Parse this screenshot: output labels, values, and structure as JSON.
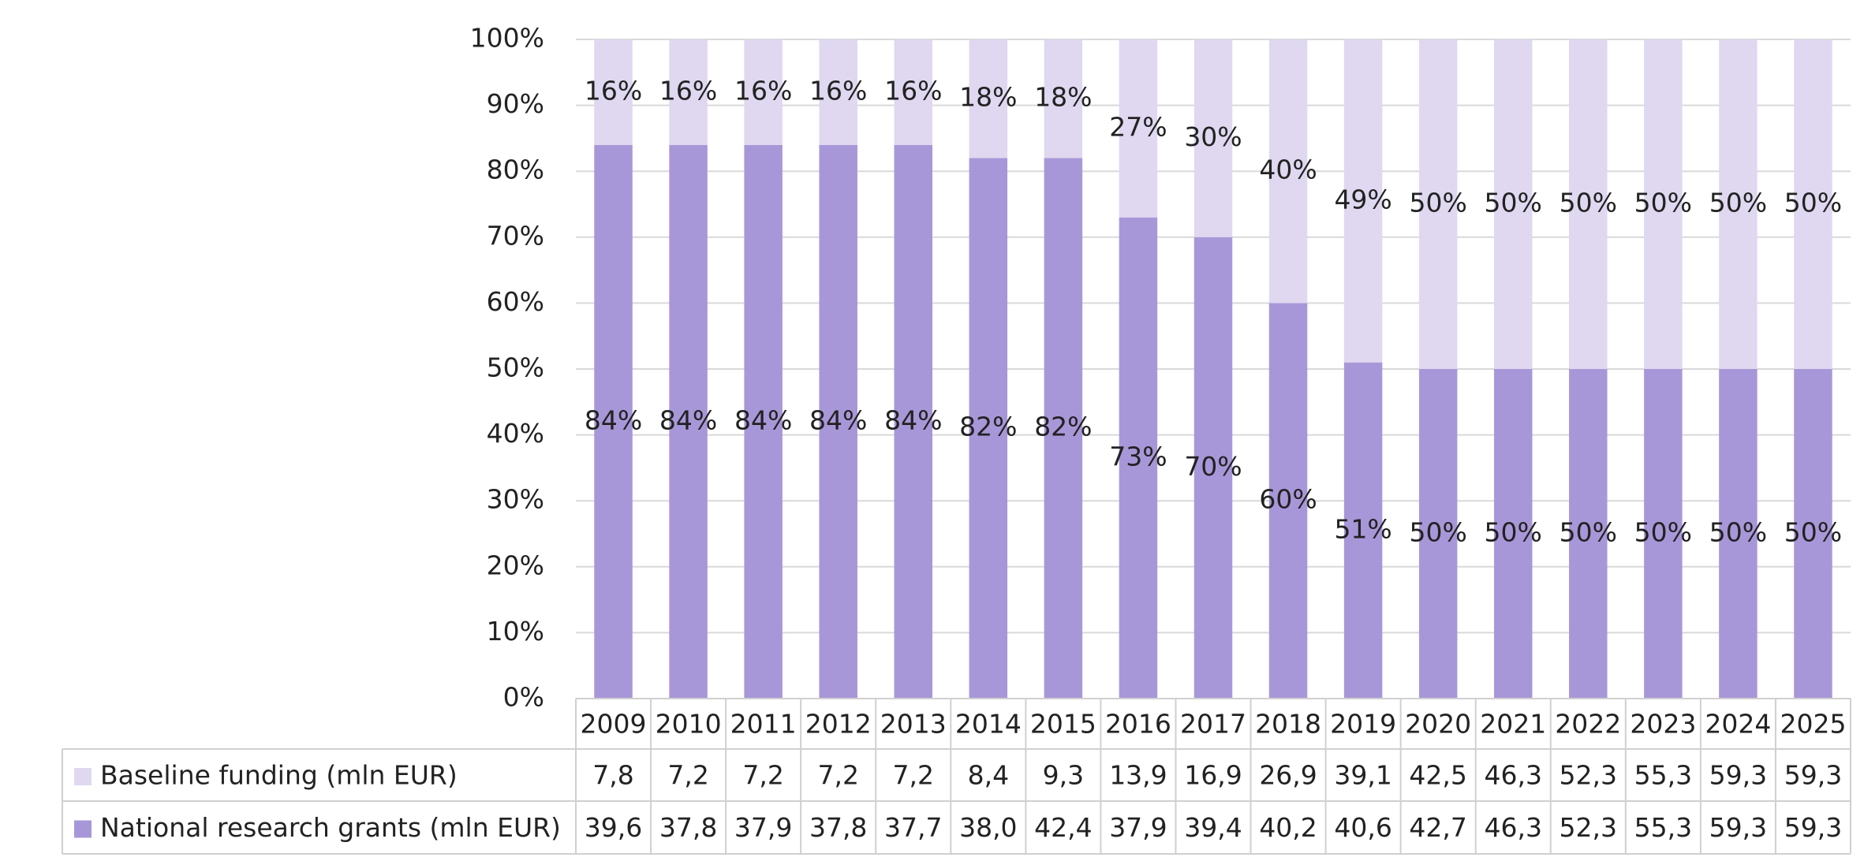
{
  "chart_data": {
    "type": "stacked_bar_100",
    "categories": [
      "2009",
      "2010",
      "2011",
      "2012",
      "2013",
      "2014",
      "2015",
      "2016",
      "2017",
      "2018",
      "2019",
      "2020",
      "2021",
      "2022",
      "2023",
      "2024",
      "2025"
    ],
    "series": [
      {
        "name": "Baseline funding (mln EUR)",
        "color": "#dfd8f0",
        "values": [
          16,
          16,
          16,
          16,
          16,
          18,
          18,
          27,
          30,
          40,
          49,
          50,
          50,
          50,
          50,
          50,
          50
        ],
        "value_labels": [
          "16%",
          "16%",
          "16%",
          "16%",
          "16%",
          "18%",
          "18%",
          "27%",
          "30%",
          "40%",
          "49%",
          "50%",
          "50%",
          "50%",
          "50%",
          "50%",
          "50%"
        ],
        "table_values": [
          7.8,
          7.2,
          7.2,
          7.2,
          7.2,
          8.4,
          9.3,
          13.9,
          16.9,
          26.9,
          39.1,
          42.5,
          46.3,
          52.3,
          55.3,
          59.3,
          59.3
        ],
        "table_labels": [
          "7,8",
          "7,2",
          "7,2",
          "7,2",
          "7,2",
          "8,4",
          "9,3",
          "13,9",
          "16,9",
          "26,9",
          "39,1",
          "42,5",
          "46,3",
          "52,3",
          "55,3",
          "59,3",
          "59,3"
        ]
      },
      {
        "name": "National research grants (mln EUR)",
        "color": "#a897d8",
        "values": [
          84,
          84,
          84,
          84,
          84,
          82,
          82,
          73,
          70,
          60,
          51,
          50,
          50,
          50,
          50,
          50,
          50
        ],
        "value_labels": [
          "84%",
          "84%",
          "84%",
          "84%",
          "84%",
          "82%",
          "82%",
          "73%",
          "70%",
          "60%",
          "51%",
          "50%",
          "50%",
          "50%",
          "50%",
          "50%",
          "50%"
        ],
        "table_values": [
          39.6,
          37.8,
          37.9,
          37.8,
          37.7,
          38.0,
          42.4,
          37.9,
          39.4,
          40.2,
          40.6,
          42.7,
          46.3,
          52.3,
          55.3,
          59.3,
          59.3
        ],
        "table_labels": [
          "39,6",
          "37,8",
          "37,9",
          "37,8",
          "37,7",
          "38,0",
          "42,4",
          "37,9",
          "39,4",
          "40,2",
          "40,6",
          "42,7",
          "46,3",
          "52,3",
          "55,3",
          "59,3",
          "59,3"
        ]
      }
    ],
    "ylim": [
      0,
      100
    ],
    "yticks": [
      {
        "value": 0,
        "label": "0%"
      },
      {
        "value": 10,
        "label": "10%"
      },
      {
        "value": 20,
        "label": "20%"
      },
      {
        "value": 30,
        "label": "30%"
      },
      {
        "value": 40,
        "label": "40%"
      },
      {
        "value": 50,
        "label": "50%"
      },
      {
        "value": 60,
        "label": "60%"
      },
      {
        "value": 70,
        "label": "70%"
      },
      {
        "value": 80,
        "label": "80%"
      },
      {
        "value": 90,
        "label": "90%"
      },
      {
        "value": 100,
        "label": "100%"
      }
    ],
    "grid": true
  }
}
